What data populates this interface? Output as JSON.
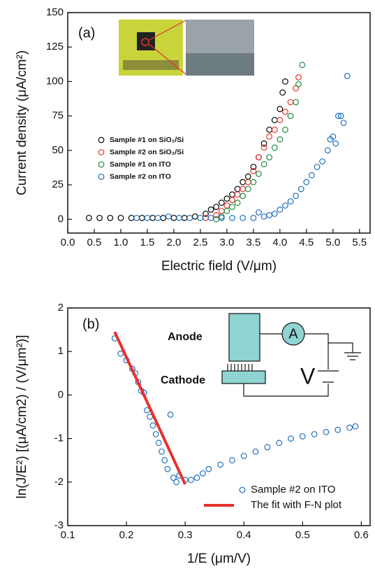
{
  "chart_data": [
    {
      "type": "scatter",
      "x_label": "Electric field (V/μm)",
      "y_label": "Current density (μA/cm²)",
      "annotations": [
        "(a)"
      ],
      "xlim": [
        0,
        5.7
      ],
      "ylim": [
        -10,
        150
      ],
      "xticks": [
        {
          "value": 0,
          "label": "0.0"
        },
        0.5,
        {
          "value": 1,
          "label": "1.0"
        },
        1.5,
        {
          "value": 2,
          "label": "2.0"
        },
        2.5,
        {
          "value": 3,
          "label": "3.0"
        },
        3.5,
        {
          "value": 4,
          "label": "4.0"
        },
        4.5,
        {
          "value": 5,
          "label": "5.0"
        },
        5.5
      ],
      "yticks": [
        0,
        25,
        50,
        75,
        100,
        125,
        150
      ],
      "legend": "left",
      "series": [
        {
          "name": "Sample #1 on SiO₂/Si",
          "color": "#000000",
          "kind": "circle",
          "x": [
            0.4,
            0.6,
            0.8,
            1.0,
            1.2,
            1.4,
            1.6,
            1.8,
            2.0,
            2.2,
            2.4,
            2.6,
            2.7,
            2.8,
            2.9,
            3.0,
            3.1,
            3.2,
            3.3,
            3.4,
            3.5,
            3.6,
            3.7,
            3.8,
            3.9,
            4.0,
            4.05,
            4.1
          ],
          "y": [
            1,
            1,
            1,
            1,
            1,
            1,
            1,
            1,
            1,
            1,
            2,
            4,
            7,
            9,
            12,
            15,
            18,
            22,
            27,
            31,
            38,
            45,
            55,
            65,
            72,
            80,
            92,
            100
          ]
        },
        {
          "name": "Sample #2 on SiO₂/Si",
          "color": "#e8312c",
          "kind": "circle",
          "x": [
            2.6,
            2.8,
            2.9,
            3.0,
            3.1,
            3.2,
            3.3,
            3.4,
            3.5,
            3.6,
            3.7,
            3.8,
            3.9,
            4.0,
            4.1,
            4.2,
            4.3,
            4.35
          ],
          "y": [
            1,
            3,
            6,
            10,
            14,
            18,
            22,
            27,
            35,
            45,
            52,
            60,
            65,
            72,
            78,
            85,
            95,
            103
          ]
        },
        {
          "name": "Sample #1 on ITO",
          "color": "#1a8a3a",
          "kind": "circle",
          "x": [
            2.8,
            2.9,
            3.0,
            3.1,
            3.2,
            3.3,
            3.4,
            3.5,
            3.6,
            3.7,
            3.8,
            3.9,
            4.0,
            4.1,
            4.2,
            4.3,
            4.35,
            4.42
          ],
          "y": [
            0,
            2,
            6,
            9,
            12,
            17,
            22,
            27,
            33,
            40,
            45,
            52,
            58,
            65,
            75,
            85,
            98,
            112
          ]
        },
        {
          "name": "Sample #2 on ITO",
          "color": "#1f6fbf",
          "kind": "circle",
          "x": [
            1.3,
            1.5,
            1.7,
            1.9,
            2.1,
            2.3,
            2.5,
            2.7,
            2.9,
            3.1,
            3.3,
            3.5,
            3.6,
            3.7,
            3.8,
            3.9,
            4.0,
            4.1,
            4.2,
            4.3,
            4.4,
            4.5,
            4.6,
            4.7,
            4.8,
            4.9,
            4.95,
            5.0,
            5.05,
            5.1,
            5.15,
            5.2,
            5.27
          ],
          "y": [
            1,
            1,
            1,
            2,
            1,
            1,
            1,
            1,
            1,
            1,
            1,
            1,
            5,
            2,
            3,
            4,
            7,
            10,
            13,
            17,
            22,
            27,
            32,
            38,
            42,
            50,
            58,
            60,
            55,
            75,
            75,
            70,
            104
          ]
        }
      ]
    },
    {
      "type": "scatter",
      "x_label": "1/E (μm/V)",
      "y_label": "ln(J/E²)  [(μA/cm2) / (V/μm²)]",
      "annotations": [
        "(b)",
        "Anode",
        "Cathode",
        "A",
        "V"
      ],
      "xlim": [
        0.1,
        0.615
      ],
      "ylim": [
        -3,
        2
      ],
      "xticks": [
        0.1,
        0.2,
        0.3,
        0.4,
        0.5,
        0.6
      ],
      "yticks": [
        -3,
        -2,
        -1,
        0,
        1,
        2
      ],
      "legend": "lower right",
      "series": [
        {
          "name": "Sample #2 on ITO",
          "color": "#1f6fbf",
          "kind": "circle",
          "x": [
            0.18,
            0.19,
            0.2,
            0.21,
            0.215,
            0.22,
            0.225,
            0.23,
            0.235,
            0.24,
            0.245,
            0.25,
            0.255,
            0.26,
            0.265,
            0.27,
            0.275,
            0.28,
            0.285,
            0.29,
            0.3,
            0.31,
            0.32,
            0.33,
            0.34,
            0.36,
            0.38,
            0.4,
            0.42,
            0.44,
            0.46,
            0.48,
            0.5,
            0.52,
            0.54,
            0.56,
            0.58,
            0.59
          ],
          "y": [
            1.3,
            0.95,
            0.8,
            0.6,
            0.5,
            0.3,
            0.1,
            0.05,
            -0.35,
            -0.5,
            -0.7,
            -0.9,
            -1.1,
            -1.3,
            -1.5,
            -1.7,
            -0.45,
            -1.9,
            -2.0,
            -1.85,
            -1.95,
            -1.95,
            -1.9,
            -1.8,
            -1.7,
            -1.6,
            -1.5,
            -1.4,
            -1.3,
            -1.2,
            -1.1,
            -1.0,
            -0.95,
            -0.9,
            -0.85,
            -0.8,
            -0.75,
            -0.72
          ]
        },
        {
          "name": "The fit with F-N plot",
          "color": "#e8312c",
          "kind": "line",
          "x": [
            0.18,
            0.3
          ],
          "y": [
            1.45,
            -2.05
          ]
        }
      ]
    }
  ]
}
